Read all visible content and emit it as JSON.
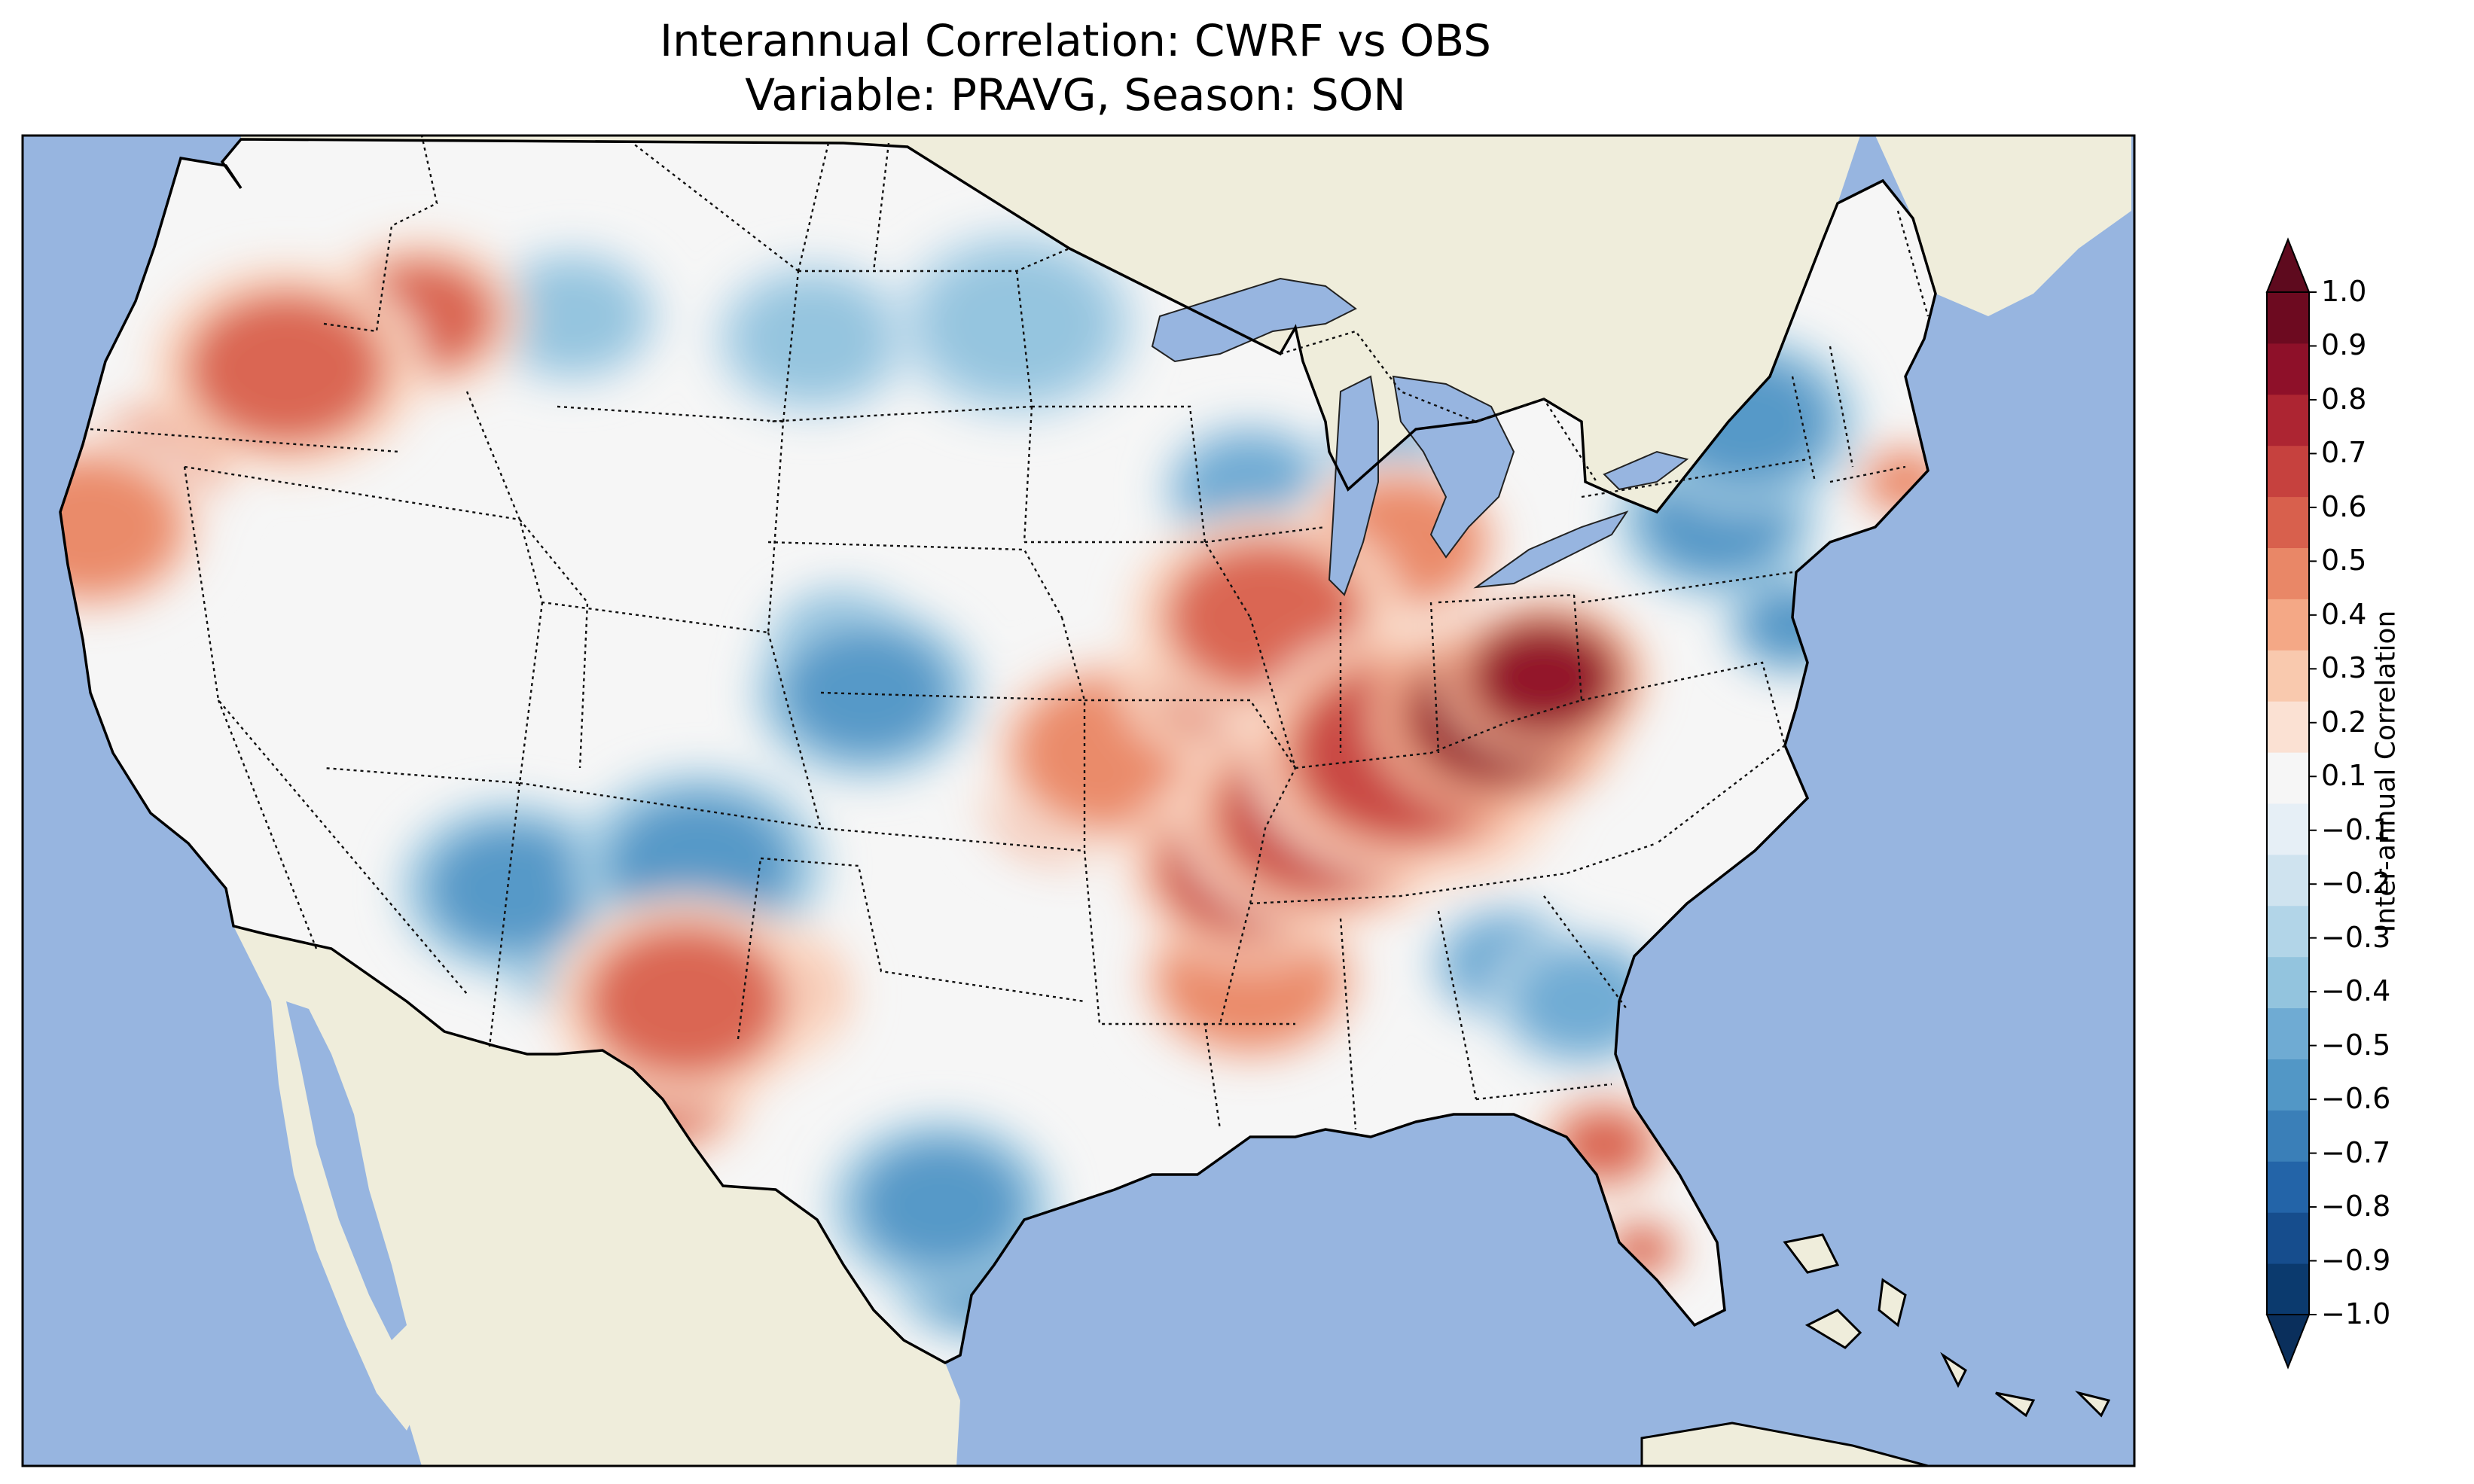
{
  "title": {
    "line1": "Interannual Correlation: CWRF vs OBS",
    "line2": "Variable: PRAVG, Season: SON"
  },
  "colorbar": {
    "label": "Inter-annual Correlation",
    "ticks": [
      "1.0",
      "0.9",
      "0.8",
      "0.7",
      "0.6",
      "0.5",
      "0.4",
      "0.3",
      "0.2",
      "0.1",
      "−0.1",
      "−0.2",
      "−0.3",
      "−0.4",
      "−0.5",
      "−0.6",
      "−0.7",
      "−0.8",
      "−0.9",
      "−1.0"
    ],
    "levels": [
      -1.0,
      -0.9,
      -0.8,
      -0.7,
      -0.6,
      -0.5,
      -0.4,
      -0.3,
      -0.2,
      -0.1,
      0.1,
      0.2,
      0.3,
      0.4,
      0.5,
      0.6,
      0.7,
      0.8,
      0.9,
      1.0
    ],
    "colors": [
      "#0b3a6e",
      "#164d8d",
      "#2364a8",
      "#3a7fb8",
      "#5297c6",
      "#6fabd3",
      "#93c4de",
      "#b2d5e8",
      "#cfe3ef",
      "#e6eff6",
      "#f6f6f6",
      "#fbe1d3",
      "#f9c9ae",
      "#f4a886",
      "#e98767",
      "#d8604d",
      "#c6413e",
      "#ad2532",
      "#8e1029",
      "#6d0a20"
    ],
    "extend_low_color": "#0a2f5c",
    "extend_high_color": "#5e0a1e"
  },
  "map": {
    "ocean_color": "#97b5e0",
    "land_color": "#efeddb",
    "projection": "Lambert conformal, contiguous United States"
  },
  "chart_data": {
    "type": "heatmap",
    "title": "Interannual Correlation: CWRF vs OBS",
    "subtitle": "Variable: PRAVG, Season: SON",
    "colorbar_label": "Inter-annual Correlation",
    "range": [
      -1.0,
      1.0
    ],
    "features": [
      {
        "region": "Kentucky / West Virginia",
        "value": 0.9
      },
      {
        "region": "Tennessee / Kentucky band",
        "value": 0.7
      },
      {
        "region": "Illinois / Indiana",
        "value": 0.6
      },
      {
        "region": "Ohio / Michigan border",
        "value": 0.5
      },
      {
        "region": "Mississippi / Louisiana",
        "value": 0.5
      },
      {
        "region": "Missouri / Arkansas",
        "value": 0.5
      },
      {
        "region": "Texas / New Mexico border",
        "value": 0.6
      },
      {
        "region": "Oregon",
        "value": 0.6
      },
      {
        "region": "Northern California",
        "value": 0.5
      },
      {
        "region": "Florida Peninsula",
        "value": 0.6
      },
      {
        "region": "Massachusetts coast",
        "value": 0.5
      },
      {
        "region": "Colorado / Kansas",
        "value": -0.6
      },
      {
        "region": "New Mexico / Arizona",
        "value": -0.6
      },
      {
        "region": "Texas Gulf Coast",
        "value": -0.6
      },
      {
        "region": "Pennsylvania / New York",
        "value": -0.6
      },
      {
        "region": "Wisconsin / Michigan",
        "value": -0.5
      },
      {
        "region": "Georgia / South Carolina",
        "value": -0.5
      },
      {
        "region": "Montana / North Dakota",
        "value": -0.4
      }
    ]
  }
}
